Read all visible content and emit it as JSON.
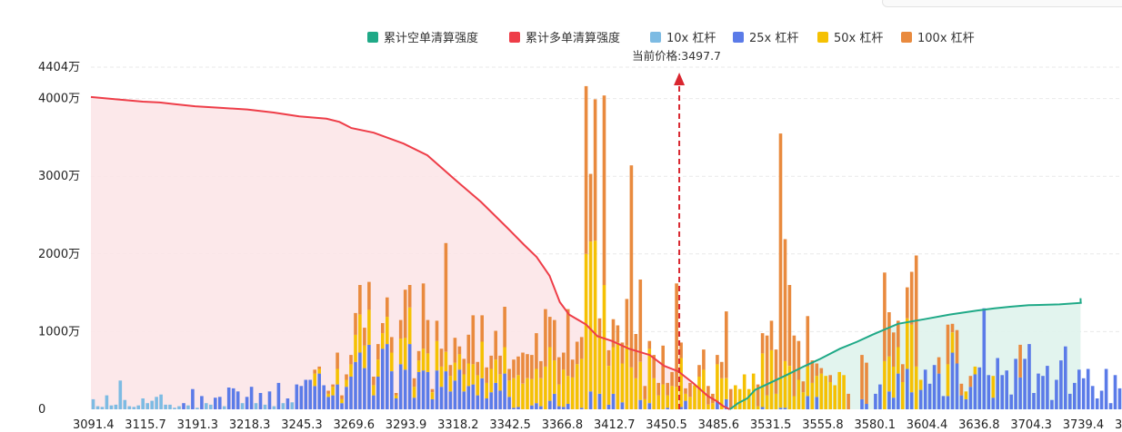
{
  "chart_data": {
    "type": "bar",
    "current_price_label": "当前价格:3497.7",
    "current_price": 3497.7,
    "legend": [
      {
        "name": "累计空单清算强度",
        "color": "#1fa987"
      },
      {
        "name": "累计多单清算强度",
        "color": "#ee3d48"
      },
      {
        "name": "10x 杠杆",
        "color": "#7dbbe3"
      },
      {
        "name": "25x 杠杆",
        "color": "#5b7be8"
      },
      {
        "name": "50x 杠杆",
        "color": "#f5c103"
      },
      {
        "name": "100x 杠杆",
        "color": "#e98a3e"
      }
    ],
    "y_ticks": [
      {
        "value": 0,
        "label": "0"
      },
      {
        "value": 1000,
        "label": "1000万"
      },
      {
        "value": 2000,
        "label": "2000万"
      },
      {
        "value": 3000,
        "label": "3000万"
      },
      {
        "value": 4000,
        "label": "4000万"
      },
      {
        "value": 4404,
        "label": "4404万"
      }
    ],
    "ylim": [
      0,
      4404
    ],
    "x_tick_labels": [
      "3091.4",
      "3115.7",
      "3191.3",
      "3218.3",
      "3245.3",
      "3269.6",
      "3293.9",
      "3318.2",
      "3342.5",
      "3366.8",
      "3412.7",
      "3450.5",
      "3485.6",
      "3531.5",
      "3555.8",
      "3580.1",
      "3604.4",
      "3636.8",
      "3704.3",
      "3739.4",
      "3"
    ],
    "bar_count": 228,
    "current_price_index": 130,
    "bars": [
      [
        130,
        0,
        0,
        0
      ],
      [
        40,
        0,
        0,
        0
      ],
      [
        30,
        0,
        0,
        0
      ],
      [
        180,
        0,
        0,
        0
      ],
      [
        50,
        0,
        0,
        0
      ],
      [
        60,
        0,
        0,
        0
      ],
      [
        370,
        0,
        0,
        0
      ],
      [
        120,
        0,
        0,
        0
      ],
      [
        40,
        0,
        0,
        0
      ],
      [
        30,
        0,
        0,
        0
      ],
      [
        50,
        0,
        0,
        0
      ],
      [
        140,
        0,
        0,
        0
      ],
      [
        80,
        0,
        0,
        0
      ],
      [
        110,
        0,
        0,
        0
      ],
      [
        160,
        0,
        0,
        0
      ],
      [
        190,
        0,
        0,
        0
      ],
      [
        60,
        0,
        0,
        0
      ],
      [
        60,
        0,
        0,
        0
      ],
      [
        20,
        0,
        0,
        0
      ],
      [
        40,
        0,
        0,
        0
      ],
      [
        0,
        80,
        0,
        0
      ],
      [
        50,
        0,
        0,
        0
      ],
      [
        0,
        260,
        0,
        0
      ],
      [
        20,
        0,
        0,
        0
      ],
      [
        0,
        170,
        0,
        0
      ],
      [
        80,
        0,
        0,
        0
      ],
      [
        60,
        0,
        0,
        0
      ],
      [
        0,
        150,
        0,
        0
      ],
      [
        0,
        160,
        0,
        0
      ],
      [
        40,
        0,
        0,
        0
      ],
      [
        0,
        280,
        0,
        0
      ],
      [
        0,
        270,
        0,
        0
      ],
      [
        0,
        230,
        0,
        0
      ],
      [
        80,
        0,
        0,
        0
      ],
      [
        0,
        160,
        0,
        0
      ],
      [
        0,
        290,
        0,
        0
      ],
      [
        80,
        0,
        0,
        0
      ],
      [
        0,
        210,
        0,
        0
      ],
      [
        60,
        0,
        0,
        0
      ],
      [
        0,
        230,
        0,
        0
      ],
      [
        40,
        0,
        0,
        0
      ],
      [
        0,
        340,
        0,
        0
      ],
      [
        80,
        0,
        0,
        0
      ],
      [
        0,
        140,
        0,
        0
      ],
      [
        90,
        0,
        0,
        0
      ],
      [
        0,
        320,
        0,
        0
      ],
      [
        0,
        300,
        0,
        0
      ],
      [
        0,
        380,
        0,
        0
      ],
      [
        0,
        380,
        0,
        0
      ],
      [
        0,
        300,
        160,
        50
      ],
      [
        0,
        460,
        60,
        30
      ],
      [
        0,
        310,
        0,
        0
      ],
      [
        0,
        160,
        40,
        40
      ],
      [
        0,
        180,
        110,
        30
      ],
      [
        0,
        320,
        200,
        210
      ],
      [
        0,
        80,
        50,
        50
      ],
      [
        0,
        290,
        90,
        70
      ],
      [
        0,
        420,
        160,
        120
      ],
      [
        0,
        610,
        350,
        280
      ],
      [
        0,
        730,
        490,
        380
      ],
      [
        0,
        530,
        290,
        230
      ],
      [
        0,
        830,
        450,
        360
      ],
      [
        0,
        180,
        130,
        110
      ],
      [
        0,
        420,
        220,
        200
      ],
      [
        0,
        780,
        200,
        130
      ],
      [
        0,
        840,
        350,
        250
      ],
      [
        0,
        490,
        240,
        200
      ],
      [
        0,
        140,
        40,
        30
      ],
      [
        0,
        580,
        330,
        240
      ],
      [
        0,
        510,
        410,
        620
      ],
      [
        0,
        840,
        470,
        290
      ],
      [
        0,
        150,
        140,
        110
      ],
      [
        0,
        480,
        150,
        120
      ],
      [
        0,
        500,
        280,
        840
      ],
      [
        0,
        480,
        240,
        430
      ],
      [
        0,
        130,
        90,
        40
      ],
      [
        0,
        500,
        380,
        260
      ],
      [
        0,
        290,
        260,
        230
      ],
      [
        0,
        490,
        250,
        1400
      ],
      [
        0,
        230,
        200,
        140
      ],
      [
        0,
        370,
        230,
        320
      ],
      [
        0,
        510,
        200,
        100
      ],
      [
        0,
        230,
        220,
        200
      ],
      [
        0,
        300,
        290,
        370
      ],
      [
        0,
        320,
        260,
        630
      ],
      [
        0,
        180,
        260,
        170
      ],
      [
        0,
        400,
        470,
        340
      ],
      [
        0,
        140,
        200,
        200
      ],
      [
        0,
        220,
        300,
        170
      ],
      [
        0,
        340,
        300,
        370
      ],
      [
        0,
        240,
        210,
        240
      ],
      [
        0,
        460,
        340,
        520
      ],
      [
        0,
        160,
        210,
        150
      ],
      [
        0,
        20,
        380,
        240
      ],
      [
        0,
        30,
        410,
        240
      ],
      [
        0,
        0,
        330,
        400
      ],
      [
        0,
        0,
        400,
        310
      ],
      [
        0,
        50,
        340,
        310
      ],
      [
        0,
        80,
        440,
        460
      ],
      [
        0,
        40,
        360,
        220
      ],
      [
        0,
        0,
        550,
        740
      ],
      [
        0,
        110,
        690,
        390
      ],
      [
        0,
        200,
        430,
        520
      ],
      [
        0,
        40,
        280,
        350
      ],
      [
        0,
        30,
        480,
        220
      ],
      [
        0,
        70,
        360,
        860
      ],
      [
        0,
        0,
        410,
        230
      ],
      [
        0,
        0,
        580,
        290
      ],
      [
        0,
        20,
        630,
        280
      ],
      [
        0,
        0,
        2000,
        2160
      ],
      [
        0,
        230,
        1930,
        870
      ],
      [
        0,
        0,
        2170,
        1820
      ],
      [
        0,
        200,
        740,
        230
      ],
      [
        0,
        0,
        1600,
        2440
      ],
      [
        0,
        60,
        500,
        200
      ],
      [
        0,
        200,
        600,
        360
      ],
      [
        0,
        0,
        860,
        220
      ],
      [
        0,
        90,
        500,
        270
      ],
      [
        0,
        0,
        820,
        600
      ],
      [
        0,
        0,
        540,
        2600
      ],
      [
        0,
        0,
        400,
        570
      ],
      [
        0,
        120,
        490,
        1060
      ],
      [
        0,
        0,
        130,
        170
      ],
      [
        0,
        80,
        700,
        100
      ],
      [
        0,
        0,
        400,
        300
      ],
      [
        0,
        0,
        180,
        160
      ],
      [
        0,
        0,
        320,
        500
      ],
      [
        0,
        20,
        160,
        160
      ],
      [
        0,
        0,
        300,
        180
      ],
      [
        0,
        0,
        290,
        1330
      ],
      [
        0,
        30,
        630,
        200
      ],
      [
        0,
        110,
        90,
        70
      ],
      [
        0,
        0,
        160,
        180
      ],
      [
        0,
        0,
        310,
        0
      ],
      [
        0,
        0,
        420,
        150
      ],
      [
        0,
        0,
        510,
        260
      ],
      [
        0,
        0,
        60,
        240
      ],
      [
        0,
        0,
        80,
        120
      ],
      [
        0,
        110,
        470,
        120
      ],
      [
        0,
        0,
        400,
        210
      ],
      [
        0,
        130,
        270,
        860
      ],
      [
        0,
        0,
        0,
        260
      ],
      [
        0,
        0,
        310,
        0
      ],
      [
        0,
        0,
        260,
        0
      ],
      [
        0,
        0,
        450,
        0
      ],
      [
        0,
        0,
        260,
        0
      ],
      [
        0,
        0,
        460,
        0
      ],
      [
        0,
        0,
        40,
        280
      ],
      [
        0,
        30,
        690,
        260
      ],
      [
        0,
        0,
        180,
        770
      ],
      [
        0,
        0,
        760,
        380
      ],
      [
        0,
        0,
        200,
        570
      ],
      [
        0,
        20,
        400,
        3130
      ],
      [
        0,
        20,
        600,
        1570
      ],
      [
        0,
        0,
        560,
        1040
      ],
      [
        0,
        0,
        170,
        780
      ],
      [
        0,
        0,
        380,
        500
      ],
      [
        0,
        0,
        220,
        140
      ],
      [
        0,
        170,
        380,
        650
      ],
      [
        0,
        0,
        340,
        290
      ],
      [
        0,
        160,
        270,
        160
      ],
      [
        0,
        0,
        460,
        70
      ],
      [
        0,
        0,
        430,
        0
      ],
      [
        0,
        0,
        350,
        90
      ],
      [
        0,
        0,
        310,
        0
      ],
      [
        0,
        0,
        480,
        0
      ],
      [
        0,
        0,
        440,
        0
      ],
      [
        0,
        0,
        0,
        200
      ],
      [
        0,
        0,
        0,
        0
      ],
      [
        0,
        0,
        0,
        0
      ],
      [
        0,
        130,
        0,
        570
      ],
      [
        0,
        70,
        0,
        530
      ],
      [
        0,
        0,
        0,
        0
      ],
      [
        0,
        200,
        0,
        0
      ],
      [
        0,
        320,
        0,
        0
      ],
      [
        0,
        0,
        620,
        1140
      ],
      [
        0,
        230,
        450,
        570
      ],
      [
        0,
        150,
        400,
        440
      ],
      [
        0,
        460,
        340,
        340
      ],
      [
        0,
        0,
        350,
        230
      ],
      [
        0,
        520,
        650,
        400
      ],
      [
        0,
        220,
        870,
        680
      ],
      [
        0,
        0,
        550,
        1430
      ],
      [
        0,
        250,
        130,
        0
      ],
      [
        0,
        510,
        0,
        0
      ],
      [
        0,
        330,
        0,
        0
      ],
      [
        0,
        570,
        0,
        0
      ],
      [
        0,
        460,
        0,
        210
      ],
      [
        0,
        170,
        0,
        0
      ],
      [
        0,
        170,
        410,
        510
      ],
      [
        0,
        730,
        260,
        110
      ],
      [
        0,
        590,
        0,
        430
      ],
      [
        0,
        180,
        0,
        150
      ],
      [
        0,
        130,
        100,
        0
      ],
      [
        0,
        290,
        0,
        140
      ],
      [
        0,
        450,
        100,
        0
      ],
      [
        0,
        540,
        0,
        0
      ],
      [
        0,
        1300,
        0,
        0
      ],
      [
        0,
        440,
        0,
        0
      ],
      [
        0,
        150,
        280,
        0
      ],
      [
        0,
        660,
        0,
        0
      ],
      [
        0,
        440,
        0,
        0
      ],
      [
        0,
        500,
        0,
        0
      ],
      [
        0,
        190,
        0,
        0
      ],
      [
        0,
        650,
        0,
        0
      ],
      [
        0,
        410,
        0,
        420
      ],
      [
        0,
        650,
        0,
        0
      ],
      [
        0,
        840,
        0,
        0
      ],
      [
        0,
        210,
        0,
        0
      ],
      [
        0,
        460,
        0,
        0
      ],
      [
        0,
        430,
        0,
        0
      ],
      [
        0,
        560,
        0,
        0
      ],
      [
        0,
        120,
        0,
        0
      ],
      [
        0,
        380,
        0,
        0
      ],
      [
        0,
        630,
        0,
        0
      ],
      [
        0,
        810,
        0,
        0
      ],
      [
        0,
        200,
        0,
        0
      ],
      [
        0,
        340,
        0,
        0
      ],
      [
        0,
        510,
        0,
        0
      ],
      [
        0,
        400,
        0,
        0
      ],
      [
        0,
        520,
        0,
        0
      ],
      [
        0,
        300,
        0,
        0
      ],
      [
        0,
        140,
        0,
        0
      ],
      [
        0,
        240,
        0,
        0
      ],
      [
        0,
        520,
        0,
        0
      ],
      [
        0,
        80,
        0,
        0
      ],
      [
        0,
        440,
        0,
        0
      ],
      [
        0,
        270,
        0,
        0
      ]
    ],
    "long_cum_curve": [
      [
        3091.4,
        4020
      ],
      [
        3103,
        3990
      ],
      [
        3115.7,
        3960
      ],
      [
        3140,
        3950
      ],
      [
        3160,
        3930
      ],
      [
        3191.3,
        3900
      ],
      [
        3205,
        3880
      ],
      [
        3218.3,
        3860
      ],
      [
        3232,
        3820
      ],
      [
        3245.3,
        3770
      ],
      [
        3258,
        3740
      ],
      [
        3264,
        3700
      ],
      [
        3269.6,
        3620
      ],
      [
        3280,
        3560
      ],
      [
        3293.9,
        3420
      ],
      [
        3305,
        3270
      ],
      [
        3318.2,
        2950
      ],
      [
        3330,
        2670
      ],
      [
        3342.5,
        2330
      ],
      [
        3350,
        2120
      ],
      [
        3356,
        1960
      ],
      [
        3362,
        1720
      ],
      [
        3366.8,
        1380
      ],
      [
        3375,
        1220
      ],
      [
        3390,
        1090
      ],
      [
        3400,
        940
      ],
      [
        3412.7,
        880
      ],
      [
        3425,
        780
      ],
      [
        3440,
        700
      ],
      [
        3450.5,
        560
      ],
      [
        3460,
        490
      ],
      [
        3470,
        340
      ],
      [
        3480,
        170
      ],
      [
        3485.6,
        110
      ],
      [
        3492,
        40
      ],
      [
        3497.7,
        0
      ]
    ],
    "short_cum_curve": [
      [
        3497.7,
        0
      ],
      [
        3505,
        80
      ],
      [
        3513,
        140
      ],
      [
        3520,
        250
      ],
      [
        3531.5,
        330
      ],
      [
        3540,
        440
      ],
      [
        3548,
        550
      ],
      [
        3555.8,
        650
      ],
      [
        3565,
        780
      ],
      [
        3573,
        870
      ],
      [
        3580.1,
        960
      ],
      [
        3592,
        1100
      ],
      [
        3604.4,
        1160
      ],
      [
        3620,
        1220
      ],
      [
        3636.8,
        1270
      ],
      [
        3660,
        1300
      ],
      [
        3680,
        1320
      ],
      [
        3704.3,
        1340
      ],
      [
        3725,
        1350
      ],
      [
        3739.4,
        1370
      ],
      [
        3752,
        1390
      ],
      [
        3762,
        1430
      ]
    ]
  }
}
